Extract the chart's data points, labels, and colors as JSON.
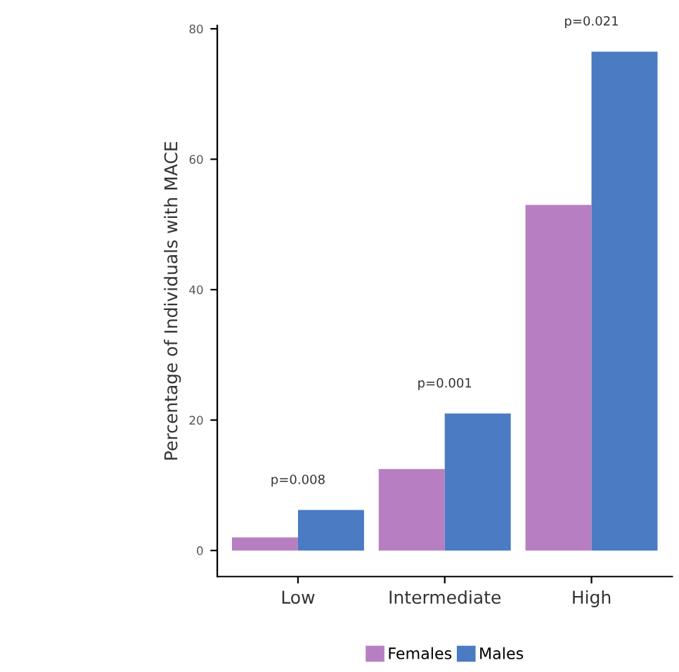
{
  "chart_data": {
    "type": "bar",
    "ylabel": "Percentage of Individuals with MACE",
    "categories": [
      "Low",
      "Intermediate",
      "High"
    ],
    "series": [
      {
        "name": "Females",
        "color": "#b77fc1",
        "values": [
          2,
          12.5,
          53
        ]
      },
      {
        "name": "Males",
        "color": "#4a7bc3",
        "values": [
          6.2,
          21,
          76.5
        ]
      }
    ],
    "annotations": [
      "p=0.008",
      "p=0.001",
      "p=0.021"
    ],
    "ylim": [
      -4,
      80.5
    ],
    "yticks": [
      0,
      20,
      40,
      60,
      80
    ],
    "grid": false,
    "legend": "bottom"
  }
}
